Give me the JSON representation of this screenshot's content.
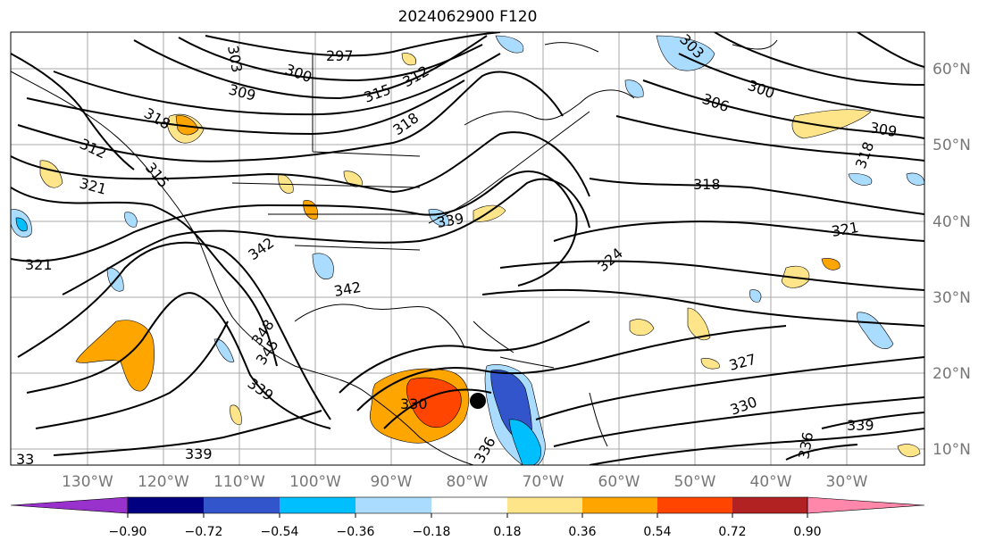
{
  "title": "2024062900 F120",
  "lat_labels": [
    "60°N",
    "50°N",
    "40°N",
    "30°N",
    "20°N",
    "10°N"
  ],
  "lon_labels": [
    "130°W",
    "120°W",
    "110°W",
    "100°W",
    "90°W",
    "80°W",
    "70°W",
    "60°W",
    "50°W",
    "40°W",
    "30°W"
  ],
  "contour_labels": [
    "297",
    "300",
    "303",
    "309",
    "312",
    "315",
    "318",
    "318",
    "321",
    "321",
    "312",
    "315",
    "300",
    "303",
    "306",
    "309",
    "318",
    "318",
    "321",
    "324",
    "327",
    "330",
    "336",
    "339",
    "339",
    "342",
    "342",
    "345",
    "348",
    "339",
    "330",
    "336",
    "339",
    "33"
  ],
  "colorbar": {
    "ticks": [
      "−0.90",
      "−0.72",
      "−0.54",
      "−0.36",
      "−0.18",
      "0.18",
      "0.36",
      "0.54",
      "0.72",
      "0.90"
    ],
    "colors": [
      "#9932cc",
      "#000080",
      "#3355cc",
      "#00bfff",
      "#aadcff",
      "#ffffff",
      "#ffe58a",
      "#ffa500",
      "#ff4500",
      "#b22222",
      "#ff88aa",
      "#ff88aa"
    ]
  },
  "marker": "storm-center"
}
